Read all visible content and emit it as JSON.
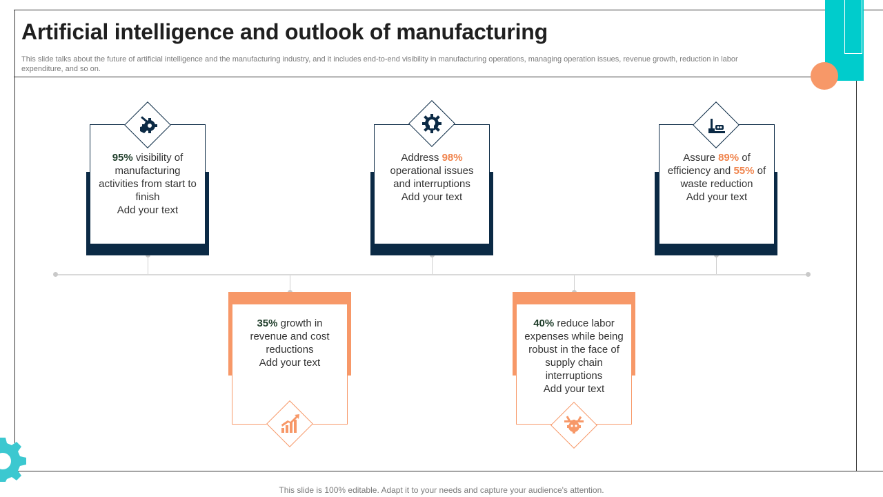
{
  "header": {
    "title": "Artificial intelligence and outlook of manufacturing",
    "subtitle": "This slide talks about the future of artificial intelligence and the manufacturing industry, and it includes end-to-end visibility in manufacturing operations, managing operation issues, revenue growth, reduction in labor expenditure, and so on."
  },
  "cards": [
    {
      "icon": "wrench-gear-hand-icon",
      "pre": "",
      "pct1": "95%",
      "mid": " visibility of manufacturing activities from start to finish",
      "pct2": "",
      "post": "",
      "cta": "Add your text"
    },
    {
      "icon": "ai-brain-gear-icon",
      "pre": "Address ",
      "pct1": "98%",
      "mid": " operational issues and interruptions",
      "pct2": "",
      "post": "",
      "cta": "Add your text"
    },
    {
      "icon": "robotic-arm-conveyor-icon",
      "pre": "Assure ",
      "pct1": "89%",
      "mid": " of efficiency and ",
      "pct2": "55%",
      "post": " of waste reduction",
      "cta": "Add your text"
    },
    {
      "icon": "growth-chart-icon",
      "pre": "",
      "pct1": "35%",
      "mid": " growth in revenue and cost reductions",
      "pct2": "",
      "post": "",
      "cta": "Add your text"
    },
    {
      "icon": "robot-gear-icon",
      "pre": "",
      "pct1": "40%",
      "mid": " reduce labor expenses while being robust in the face of supply chain interruptions",
      "pct2": "",
      "post": "",
      "cta": "Add your text"
    }
  ],
  "footer": {
    "text": "This slide is 100% editable. Adapt it to your needs and capture your audience's attention."
  },
  "colors": {
    "navy": "#0b2a45",
    "orange": "#f79868",
    "teal": "#00cccc",
    "highlight": "#f0844d",
    "bold_green": "#1f3d2a"
  }
}
